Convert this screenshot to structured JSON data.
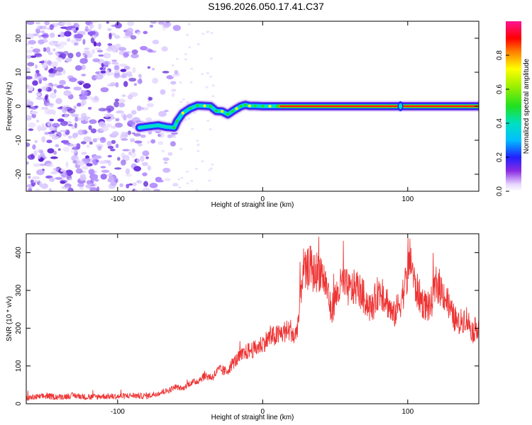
{
  "title": "S196.2026.050.17.41.C37",
  "colors": {
    "snr_line": "#ee3333",
    "axis": "#000000",
    "background": "#ffffff"
  },
  "chart_data": [
    {
      "type": "heatmap",
      "title": "S196.2026.050.17.41.C37",
      "xlabel": "Height of straight line (km)",
      "ylabel": "Frequency (Hz)",
      "xlim": [
        -163,
        149
      ],
      "ylim": [
        -25,
        25
      ],
      "xticks": [
        -100,
        0,
        100
      ],
      "xtick_labels": [
        "-100",
        "0",
        "100"
      ],
      "yticks": [
        -20,
        -10,
        0,
        10,
        20
      ],
      "ytick_labels": [
        "-20",
        "-10",
        "0",
        "10",
        "20"
      ],
      "noise_region_end_km": -62,
      "track": {
        "x": [
          -85,
          -80,
          -72,
          -66,
          -61,
          -59,
          -55,
          -50,
          -45,
          -40,
          -36,
          -32,
          -28,
          -24,
          -21,
          -18,
          -15,
          -12,
          -9,
          -5,
          0,
          5,
          10,
          20,
          60,
          95,
          110,
          149
        ],
        "y": [
          -6.3,
          -6.0,
          -5.6,
          -6.1,
          -6.3,
          -4.4,
          -2.0,
          -0.6,
          0.2,
          0.1,
          0.0,
          -1.4,
          -1.5,
          -2.4,
          -1.5,
          -0.7,
          0.0,
          0.4,
          0.1,
          0.1,
          0.0,
          0.0,
          0.0,
          0.0,
          0.0,
          0.0,
          0.0,
          0.0
        ]
      },
      "colorbar": {
        "label": "Normalized spectral amplitude",
        "range": [
          0,
          1
        ],
        "ticks": [
          0,
          0.2,
          0.4,
          0.6,
          0.8
        ],
        "tick_labels": [
          "0.0",
          "0.2",
          "0.4",
          "0.6",
          "0.8"
        ]
      }
    },
    {
      "type": "line",
      "xlabel": "Height of straight line (km)",
      "ylabel": "SNR (10 * v/v)",
      "xlim": [
        -163,
        149
      ],
      "ylim": [
        0,
        450
      ],
      "xticks": [
        -100,
        0,
        100
      ],
      "xtick_labels": [
        "-100",
        "0",
        "100"
      ],
      "yticks": [
        0,
        100,
        200,
        300,
        400
      ],
      "ytick_labels": [
        "0",
        "100",
        "200",
        "300",
        "400"
      ],
      "series": [
        {
          "name": "SNR",
          "x": [
            -163,
            -150,
            -140,
            -130,
            -120,
            -110,
            -100,
            -90,
            -80,
            -75,
            -70,
            -65,
            -60,
            -55,
            -50,
            -45,
            -40,
            -35,
            -30,
            -25,
            -20,
            -15,
            -10,
            -5,
            0,
            5,
            10,
            15,
            20,
            22,
            25,
            27,
            28,
            30,
            32,
            35,
            40,
            45,
            47,
            50,
            55,
            60,
            65,
            70,
            75,
            80,
            85,
            90,
            95,
            100,
            102,
            105,
            110,
            115,
            120,
            125,
            130,
            135,
            140,
            145,
            149
          ],
          "y": [
            15,
            20,
            18,
            22,
            17,
            20,
            19,
            22,
            20,
            25,
            30,
            35,
            45,
            40,
            55,
            60,
            75,
            70,
            90,
            85,
            110,
            125,
            140,
            145,
            160,
            175,
            180,
            190,
            195,
            170,
            230,
            330,
            360,
            340,
            370,
            345,
            355,
            300,
            240,
            280,
            320,
            300,
            310,
            280,
            250,
            300,
            280,
            230,
            270,
            340,
            390,
            310,
            270,
            250,
            320,
            290,
            240,
            210,
            230,
            190,
            210
          ]
        }
      ]
    }
  ]
}
